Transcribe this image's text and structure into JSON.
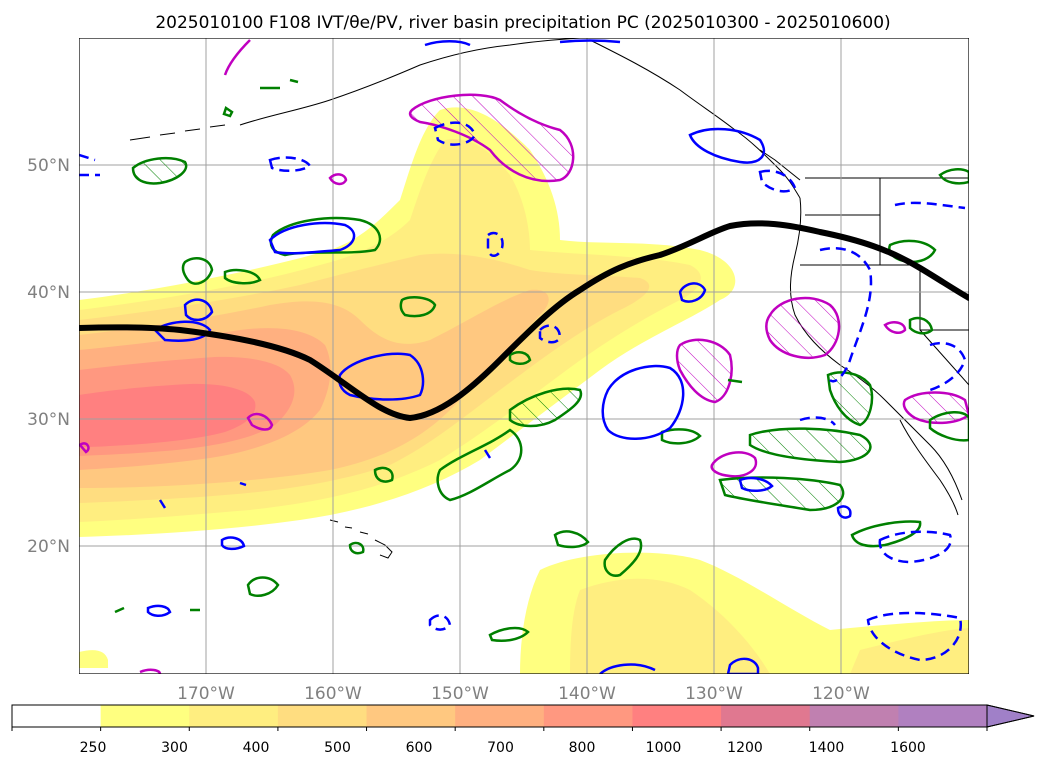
{
  "figure": {
    "title": "2025010100 F108 IVT/θe/PV, river basin precipitation PC (2025010300 - 2025010600)"
  },
  "map": {
    "lon_range": [
      -180,
      -110
    ],
    "lat_range": [
      10,
      60
    ],
    "lat_ticks": [
      {
        "value": 20,
        "label": "20°N"
      },
      {
        "value": 30,
        "label": "30°N"
      },
      {
        "value": 40,
        "label": "40°N"
      },
      {
        "value": 50,
        "label": "50°N"
      }
    ],
    "lon_ticks": [
      {
        "value": -170,
        "label": "170°W"
      },
      {
        "value": -160,
        "label": "160°W"
      },
      {
        "value": -150,
        "label": "150°W"
      },
      {
        "value": -140,
        "label": "140°W"
      },
      {
        "value": -130,
        "label": "130°W"
      },
      {
        "value": -120,
        "label": "120°W"
      }
    ],
    "grid": true,
    "contour_colors": {
      "theta_e_line": "#000000",
      "positive_pc": "#008000",
      "negative_pc": "#0000ff",
      "pv": "#c000c0"
    }
  },
  "colorbar": {
    "levels": [
      "250",
      "300",
      "400",
      "500",
      "600",
      "700",
      "800",
      "1000",
      "1200",
      "1400",
      "1600"
    ],
    "colors": [
      "#ffffff",
      "#ffff80",
      "#ffee80",
      "#ffdd80",
      "#ffc880",
      "#ffb080",
      "#ff9880",
      "#ff8080",
      "#e07890",
      "#c080b0",
      "#b080c0",
      "#a080c8"
    ],
    "extend": "max"
  }
}
